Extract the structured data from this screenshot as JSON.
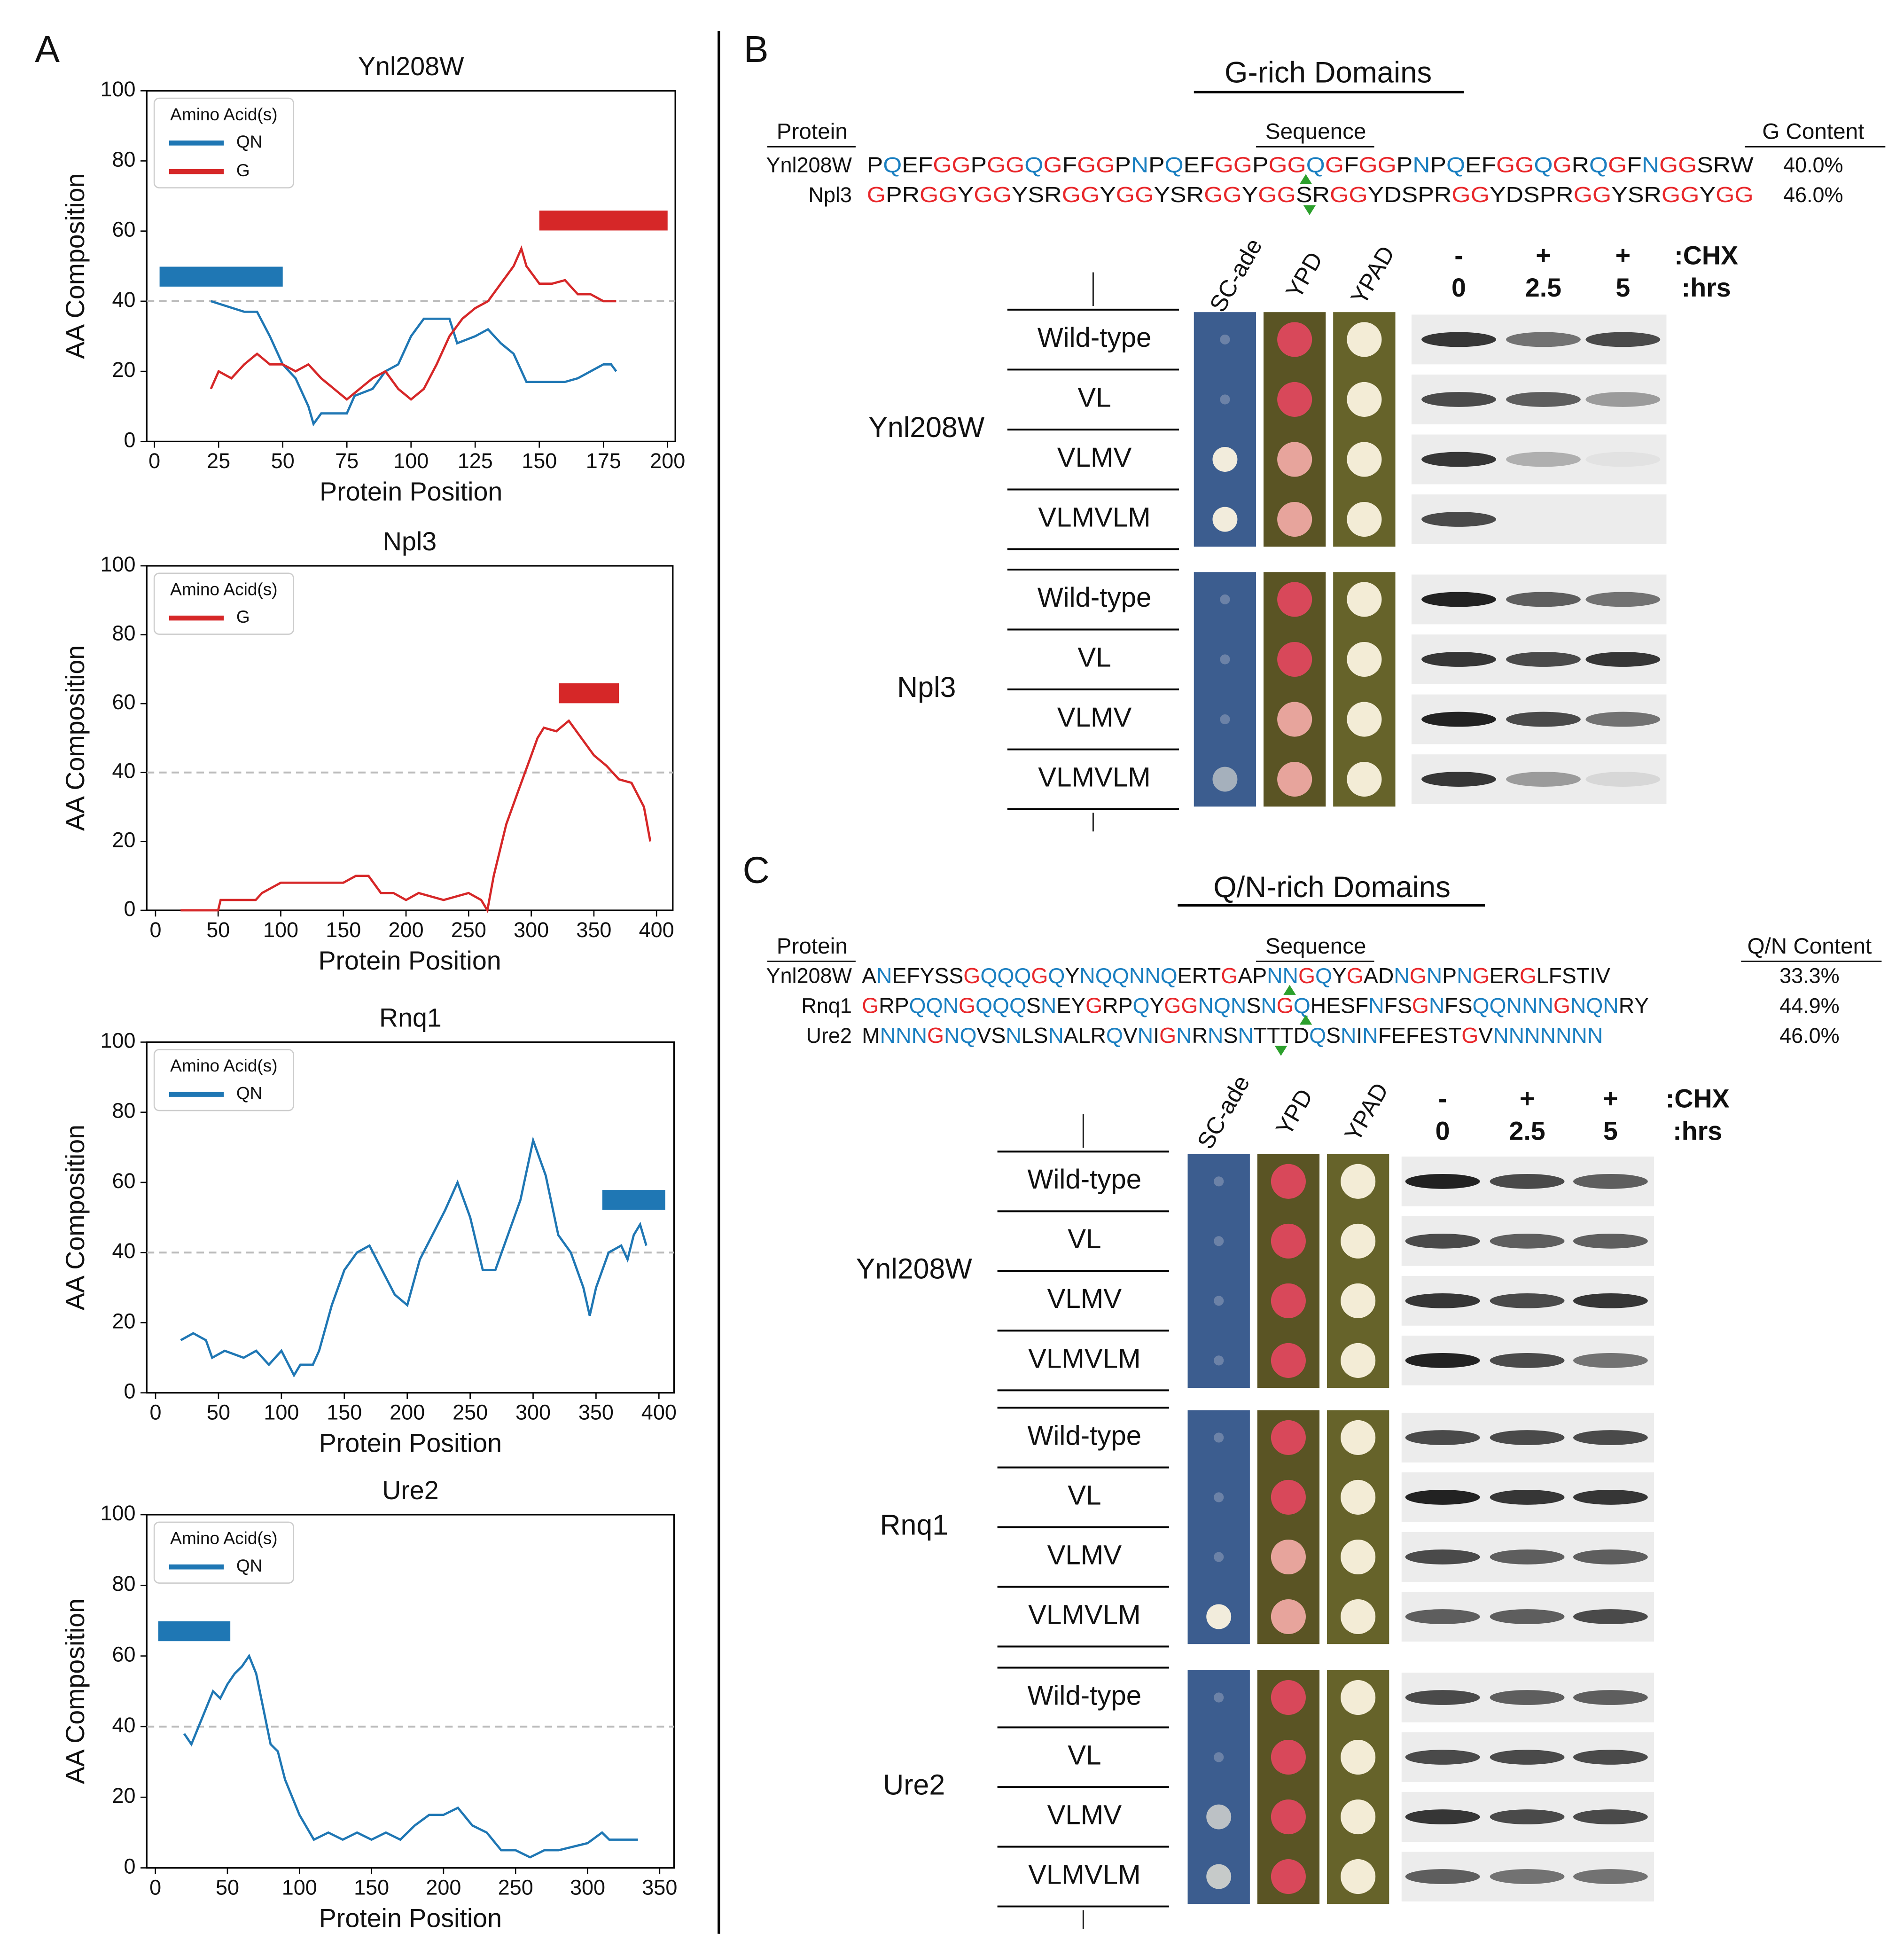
{
  "panels": {
    "a": "A",
    "b": "B",
    "c": "C"
  },
  "chart_data": [
    {
      "type": "line",
      "title": "Ynl208W",
      "xlabel": "Protein Position",
      "ylabel": "AA Composition",
      "xlim": [
        -3,
        203
      ],
      "ylim": [
        0,
        100
      ],
      "xticks": [
        0,
        25,
        50,
        75,
        100,
        125,
        150,
        175,
        200
      ],
      "yticks": [
        0,
        20,
        40,
        60,
        80,
        100
      ],
      "legend_title": "Amino Acid(s)",
      "legend": "upper left",
      "threshold": 40,
      "series": [
        {
          "name": "QN",
          "color": "#1f77b4",
          "x": [
            22,
            35,
            40,
            45,
            50,
            55,
            60,
            62,
            65,
            75,
            78,
            85,
            90,
            95,
            100,
            105,
            115,
            118,
            125,
            130,
            135,
            140,
            145,
            150,
            160,
            165,
            170,
            175,
            178,
            180
          ],
          "values": [
            40,
            37,
            37,
            30,
            22,
            18,
            10,
            5,
            8,
            8,
            13,
            15,
            20,
            22,
            30,
            35,
            35,
            28,
            30,
            32,
            28,
            25,
            17,
            17,
            17,
            18,
            20,
            22,
            22,
            20
          ],
          "domain": {
            "start": 2,
            "end": 50,
            "y": 47
          }
        },
        {
          "name": "G",
          "color": "#d62728",
          "x": [
            22,
            25,
            30,
            35,
            40,
            45,
            50,
            55,
            60,
            65,
            70,
            75,
            80,
            85,
            90,
            95,
            100,
            105,
            110,
            115,
            120,
            125,
            130,
            135,
            140,
            143,
            145,
            150,
            155,
            160,
            165,
            170,
            175,
            180
          ],
          "values": [
            15,
            20,
            18,
            22,
            25,
            22,
            22,
            20,
            22,
            18,
            15,
            12,
            15,
            18,
            20,
            15,
            12,
            15,
            22,
            30,
            35,
            38,
            40,
            45,
            50,
            55,
            50,
            45,
            45,
            46,
            42,
            42,
            40,
            40
          ],
          "domain": {
            "start": 150,
            "end": 200,
            "y": 63
          }
        }
      ]
    },
    {
      "type": "line",
      "title": "Npl3",
      "xlabel": "Protein Position",
      "ylabel": "AA Composition",
      "xlim": [
        -7,
        413
      ],
      "ylim": [
        0,
        100
      ],
      "xticks": [
        0,
        50,
        100,
        150,
        200,
        250,
        300,
        350,
        400
      ],
      "yticks": [
        0,
        20,
        40,
        60,
        80,
        100
      ],
      "legend_title": "Amino Acid(s)",
      "legend": "upper left",
      "threshold": 40,
      "series": [
        {
          "name": "G",
          "color": "#d62728",
          "x": [
            20,
            50,
            52,
            80,
            85,
            100,
            150,
            160,
            170,
            180,
            190,
            200,
            210,
            230,
            250,
            260,
            265,
            270,
            280,
            290,
            300,
            305,
            310,
            320,
            330,
            340,
            350,
            360,
            370,
            380,
            390,
            395
          ],
          "values": [
            0,
            0,
            3,
            3,
            5,
            8,
            8,
            10,
            10,
            5,
            5,
            3,
            5,
            3,
            5,
            3,
            0,
            10,
            25,
            35,
            45,
            50,
            53,
            52,
            55,
            50,
            45,
            42,
            38,
            37,
            30,
            20
          ],
          "domain": {
            "start": 322,
            "end": 370,
            "y": 63
          }
        }
      ]
    },
    {
      "type": "line",
      "title": "Rnq1",
      "xlabel": "Protein Position",
      "ylabel": "AA Composition",
      "xlim": [
        -7,
        412
      ],
      "ylim": [
        0,
        100
      ],
      "xticks": [
        0,
        50,
        100,
        150,
        200,
        250,
        300,
        350,
        400
      ],
      "yticks": [
        0,
        20,
        40,
        60,
        80,
        100
      ],
      "legend_title": "Amino Acid(s)",
      "legend": "upper left",
      "threshold": 40,
      "series": [
        {
          "name": "QN",
          "color": "#1f77b4",
          "x": [
            20,
            30,
            40,
            45,
            55,
            70,
            80,
            90,
            100,
            110,
            115,
            125,
            130,
            140,
            150,
            160,
            170,
            180,
            190,
            200,
            210,
            220,
            230,
            240,
            250,
            260,
            270,
            280,
            290,
            300,
            310,
            320,
            330,
            340,
            345,
            350,
            360,
            370,
            375,
            380,
            385,
            390
          ],
          "values": [
            15,
            17,
            15,
            10,
            12,
            10,
            12,
            8,
            12,
            5,
            8,
            8,
            12,
            25,
            35,
            40,
            42,
            35,
            28,
            25,
            38,
            45,
            52,
            60,
            50,
            35,
            35,
            45,
            55,
            72,
            62,
            45,
            40,
            30,
            22,
            30,
            40,
            42,
            38,
            45,
            48,
            42
          ],
          "domain": {
            "start": 355,
            "end": 405,
            "y": 55
          }
        }
      ]
    },
    {
      "type": "line",
      "title": "Ure2",
      "xlabel": "Protein Position",
      "ylabel": "AA Composition",
      "xlim": [
        -6,
        360
      ],
      "ylim": [
        0,
        100
      ],
      "xticks": [
        0,
        50,
        100,
        150,
        200,
        250,
        300,
        350
      ],
      "yticks": [
        0,
        20,
        40,
        60,
        80,
        100
      ],
      "legend_title": "Amino Acid(s)",
      "legend": "upper left",
      "threshold": 40,
      "series": [
        {
          "name": "QN",
          "color": "#1f77b4",
          "x": [
            20,
            25,
            30,
            35,
            40,
            45,
            50,
            55,
            60,
            65,
            70,
            75,
            80,
            85,
            90,
            100,
            110,
            120,
            130,
            140,
            150,
            160,
            170,
            180,
            190,
            200,
            210,
            220,
            230,
            240,
            250,
            260,
            270,
            280,
            300,
            310,
            315,
            335
          ],
          "values": [
            38,
            35,
            40,
            45,
            50,
            48,
            52,
            55,
            57,
            60,
            55,
            45,
            35,
            33,
            25,
            15,
            8,
            10,
            8,
            10,
            8,
            10,
            8,
            12,
            15,
            15,
            17,
            12,
            10,
            5,
            5,
            3,
            5,
            5,
            7,
            10,
            8,
            8
          ],
          "domain": {
            "start": 2,
            "end": 52,
            "y": 67
          }
        }
      ]
    }
  ],
  "panel_b": {
    "title": "G-rich Domains",
    "columns": {
      "protein": "Protein",
      "sequence": "Sequence",
      "content": "G Content"
    },
    "rows": [
      {
        "protein": "Ynl208W",
        "sequence": "PQEFGGPGGQGFGGPNPQEFGGPGGQGFGGPNPQEFGGQGRQGFNGGSRW",
        "content": "40.0%"
      },
      {
        "protein": "Npl3",
        "sequence": "GPRGGYGGYSRGGYGGYSRGGYGGSRGGYDSPRGGYDSPRGGYSRGGYGG",
        "content": "46.0%"
      }
    ],
    "media": [
      "SC-ade",
      "YPD",
      "YPAD"
    ],
    "chx": {
      "label": ":CHX",
      "signs": [
        "-",
        "+",
        "+"
      ]
    },
    "hrs": {
      "label": ":hrs",
      "values": [
        "0",
        "2.5",
        "5"
      ]
    },
    "groups": [
      {
        "name": "Ynl208W",
        "strains": [
          "Wild-type",
          "VL",
          "VLMV",
          "VLMVLM"
        ]
      },
      {
        "name": "Npl3",
        "strains": [
          "Wild-type",
          "VL",
          "VLMV",
          "VLMVLM"
        ]
      }
    ]
  },
  "panel_c": {
    "title": "Q/N-rich Domains",
    "columns": {
      "protein": "Protein",
      "sequence": "Sequence",
      "content": "Q/N Content"
    },
    "rows": [
      {
        "protein": "Ynl208W",
        "sequence": "ANEFYSSGQQQGQYNQQNNQERTGAPNNGQYGADNGNPNGERGLFSTIV",
        "content": "33.3%"
      },
      {
        "protein": "Rnq1",
        "sequence": "GRPQQNGQQQSNEYGRPQYGGNQNSNGQHESFNFSGNFSQQNNNGNQNRY",
        "content": "44.9%"
      },
      {
        "protein": "Ure2",
        "sequence": "MNNNGNQVSNLSNALRQVNIGNRNSNTTTDQSNINFEFESTGVNNNNNNN",
        "content": "46.0%"
      }
    ],
    "media": [
      "SC-ade",
      "YPD",
      "YPAD"
    ],
    "chx": {
      "label": ":CHX",
      "signs": [
        "-",
        "+",
        "+"
      ]
    },
    "hrs": {
      "label": ":hrs",
      "values": [
        "0",
        "2.5",
        "5"
      ]
    },
    "groups": [
      {
        "name": "Ynl208W",
        "strains": [
          "Wild-type",
          "VL",
          "VLMV",
          "VLMVLM"
        ]
      },
      {
        "name": "Rnq1",
        "strains": [
          "Wild-type",
          "VL",
          "VLMV",
          "VLMVLM"
        ]
      },
      {
        "name": "Ure2",
        "strains": [
          "Wild-type",
          "VL",
          "VLMV",
          "VLMVLM"
        ]
      }
    ]
  }
}
